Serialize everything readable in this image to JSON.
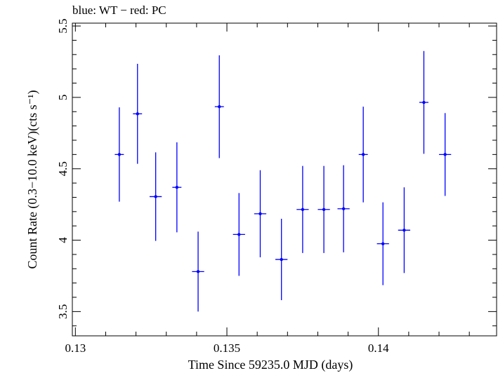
{
  "chart_data": {
    "type": "scatter",
    "title": "blue: WT − red: PC",
    "xlabel": "Time Since 59235.0 MJD (days)",
    "ylabel": "Count Rate (0.3−10.0 keV)(cts s⁻¹)",
    "xlim": [
      0.1299,
      0.1439
    ],
    "ylim": [
      3.33,
      5.52
    ],
    "xticks": [
      0.13,
      0.135,
      0.14
    ],
    "xtick_labels": [
      "0.13",
      "0.135",
      "0.14"
    ],
    "yticks": [
      3.5,
      4,
      4.5,
      5,
      5.5
    ],
    "ytick_labels": [
      "3.5",
      "4",
      "4.5",
      "5",
      "5.5"
    ],
    "grid": false,
    "series": [
      {
        "color": "#0000ff",
        "x": [
          0.13145,
          0.13205,
          0.13265,
          0.13335,
          0.13405,
          0.13475,
          0.1354,
          0.1361,
          0.1368,
          0.1375,
          0.1382,
          0.13885,
          0.1395,
          0.14015,
          0.14085,
          0.1415,
          0.1422
        ],
        "xerr": [
          0.00015,
          0.00015,
          0.0002,
          0.00015,
          0.0002,
          0.00015,
          0.0002,
          0.0002,
          0.0002,
          0.0002,
          0.0002,
          0.0002,
          0.00015,
          0.0002,
          0.0002,
          0.00015,
          0.0002
        ],
        "y": [
          4.6,
          4.885,
          4.305,
          4.37,
          3.78,
          4.935,
          4.04,
          4.185,
          3.865,
          4.215,
          4.215,
          4.22,
          4.6,
          3.975,
          4.07,
          4.965,
          4.6
        ],
        "yerr": [
          0.33,
          0.35,
          0.31,
          0.315,
          0.28,
          0.36,
          0.29,
          0.305,
          0.285,
          0.305,
          0.305,
          0.305,
          0.335,
          0.29,
          0.3,
          0.36,
          0.29
        ]
      }
    ]
  }
}
